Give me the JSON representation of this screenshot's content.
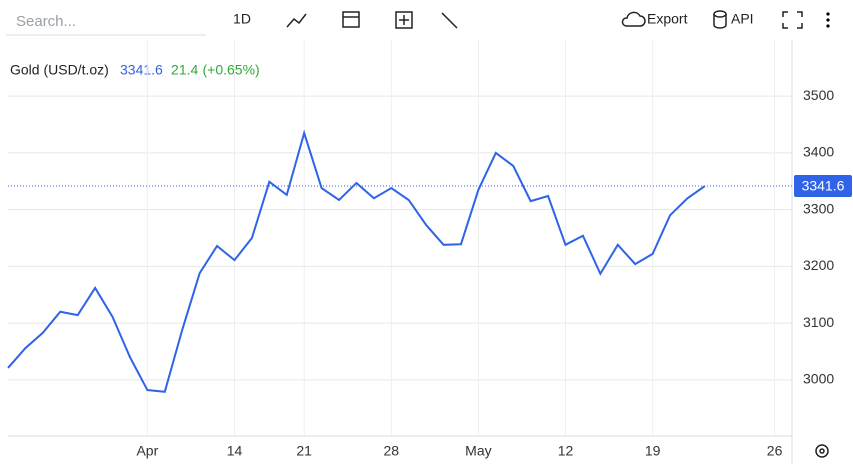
{
  "toolbar": {
    "search_placeholder": "Search...",
    "interval": "1D",
    "export": "Export",
    "api": "API"
  },
  "chart_data": {
    "type": "line",
    "title": "Gold (USD/t.oz)",
    "change": 21.4,
    "change_pct": "(+0.65%)",
    "x": [
      0,
      1,
      2,
      3,
      4,
      5,
      6,
      7,
      8,
      9,
      10,
      11,
      12,
      13,
      14,
      15,
      16,
      17,
      18,
      19,
      20,
      21,
      22,
      23,
      24,
      25,
      26,
      27,
      28,
      29,
      30,
      31,
      32,
      33,
      34,
      35,
      36,
      37,
      38,
      39,
      40
    ],
    "series": [
      {
        "name": "Gold (USD/t.oz)",
        "color": "#2f63e8",
        "values": [
          3021,
          3056,
          3083,
          3120,
          3114,
          3162,
          3111,
          3040,
          2982,
          2979,
          3088,
          3188,
          3236,
          3211,
          3250,
          3349,
          3326,
          3435,
          3338,
          3317,
          3347,
          3320,
          3338,
          3317,
          3273,
          3238,
          3239,
          3335,
          3400,
          3377,
          3315,
          3324,
          3238,
          3254,
          3187,
          3238,
          3204,
          3222,
          3290,
          3320,
          3341.6
        ]
      }
    ],
    "xlim": [
      0,
      45
    ],
    "xticks": [
      {
        "value": 8,
        "label": "Apr"
      },
      {
        "value": 13,
        "label": "14"
      },
      {
        "value": 17,
        "label": "21"
      },
      {
        "value": 22,
        "label": "28"
      },
      {
        "value": 27,
        "label": "May"
      },
      {
        "value": 32,
        "label": "12"
      },
      {
        "value": 37,
        "label": "19"
      },
      {
        "value": 44,
        "label": "26"
      }
    ],
    "ylim": [
      2901,
      3599
    ],
    "yticks": [
      3000,
      3100,
      3200,
      3300,
      3400,
      3500
    ],
    "grid": true,
    "change_color": "#2eaa3a"
  }
}
